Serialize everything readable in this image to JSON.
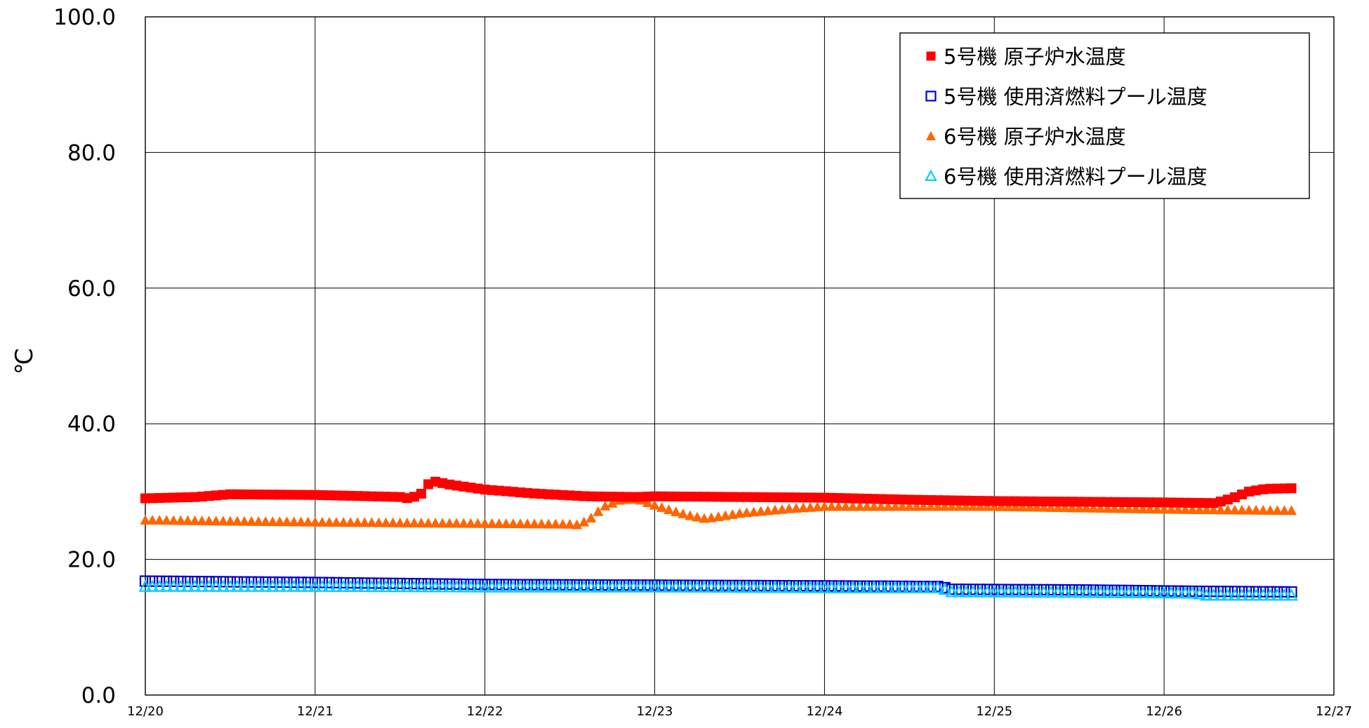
{
  "chart_data": {
    "type": "scatter",
    "ylabel": "℃",
    "ylim": [
      0,
      100
    ],
    "yticks": [
      "0.0",
      "20.0",
      "40.0",
      "60.0",
      "80.0",
      "100.0"
    ],
    "xticks": [
      "12/20",
      "12/21",
      "12/22",
      "12/23",
      "12/24",
      "12/25",
      "12/26",
      "12/27"
    ],
    "xlim_days": [
      0,
      7
    ],
    "grid": true,
    "legend_position": "top-right",
    "series": [
      {
        "name": "5号機 原子炉水温度",
        "marker": "square-filled",
        "color": "#ff0000",
        "points": [
          [
            0,
            29.0
          ],
          [
            0.3,
            29.2
          ],
          [
            0.45,
            29.5
          ],
          [
            0.5,
            29.6
          ],
          [
            1.0,
            29.5
          ],
          [
            1.5,
            29.2
          ],
          [
            1.55,
            29.0
          ],
          [
            1.62,
            29.5
          ],
          [
            1.66,
            31.0
          ],
          [
            1.7,
            31.5
          ],
          [
            1.8,
            31.0
          ],
          [
            2.0,
            30.3
          ],
          [
            2.3,
            29.7
          ],
          [
            2.6,
            29.3
          ],
          [
            2.9,
            29.2
          ],
          [
            3.0,
            29.3
          ],
          [
            3.5,
            29.2
          ],
          [
            4.0,
            29.1
          ],
          [
            4.5,
            28.8
          ],
          [
            5.0,
            28.6
          ],
          [
            5.5,
            28.5
          ],
          [
            6.0,
            28.4
          ],
          [
            6.3,
            28.3
          ],
          [
            6.4,
            29.0
          ],
          [
            6.5,
            30.0
          ],
          [
            6.6,
            30.4
          ],
          [
            6.77,
            30.5
          ]
        ]
      },
      {
        "name": "5号機 使用済燃料プール温度",
        "marker": "square-open",
        "color": "#0000cc",
        "points": [
          [
            0,
            16.8
          ],
          [
            1.0,
            16.6
          ],
          [
            2.0,
            16.3
          ],
          [
            3.0,
            16.2
          ],
          [
            4.0,
            16.1
          ],
          [
            4.7,
            16.0
          ],
          [
            4.72,
            15.6
          ],
          [
            5.5,
            15.5
          ],
          [
            6.2,
            15.3
          ],
          [
            6.77,
            15.2
          ]
        ]
      },
      {
        "name": "6号機 原子炉水温度",
        "marker": "triangle-filled",
        "color": "#ff6600",
        "points": [
          [
            0,
            25.8
          ],
          [
            1.0,
            25.5
          ],
          [
            2.0,
            25.3
          ],
          [
            2.5,
            25.2
          ],
          [
            2.55,
            25.1
          ],
          [
            2.62,
            26.0
          ],
          [
            2.7,
            27.8
          ],
          [
            2.8,
            28.8
          ],
          [
            2.9,
            28.9
          ],
          [
            3.0,
            28.0
          ],
          [
            3.1,
            27.2
          ],
          [
            3.2,
            26.5
          ],
          [
            3.3,
            26.0
          ],
          [
            3.5,
            26.8
          ],
          [
            3.8,
            27.5
          ],
          [
            4.0,
            27.8
          ],
          [
            4.5,
            27.8
          ],
          [
            5.0,
            27.8
          ],
          [
            5.5,
            27.6
          ],
          [
            6.0,
            27.4
          ],
          [
            6.77,
            27.2
          ]
        ]
      },
      {
        "name": "6号機 使用済燃料プール温度",
        "marker": "triangle-open",
        "color": "#00ccff",
        "points": [
          [
            0,
            16.0
          ],
          [
            1.0,
            16.0
          ],
          [
            2.0,
            15.9
          ],
          [
            3.0,
            15.9
          ],
          [
            4.0,
            15.8
          ],
          [
            4.7,
            15.8
          ],
          [
            4.72,
            15.2
          ],
          [
            5.5,
            15.1
          ],
          [
            6.2,
            15.0
          ],
          [
            6.22,
            14.7
          ],
          [
            6.77,
            14.7
          ]
        ]
      }
    ]
  }
}
